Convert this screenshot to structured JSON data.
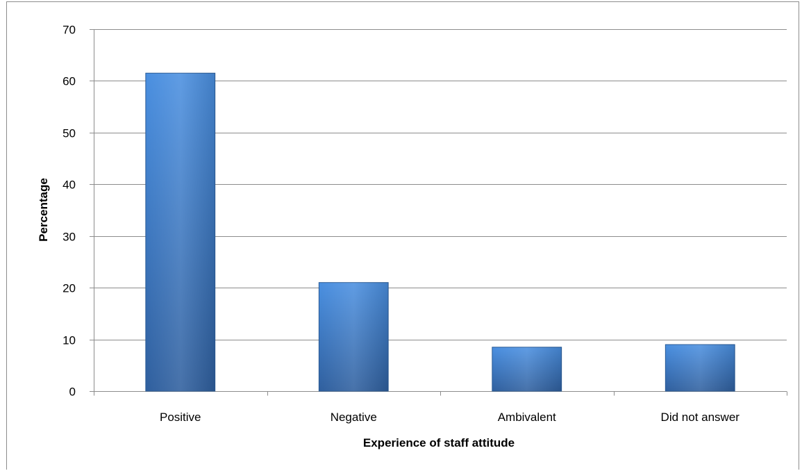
{
  "chart_data": {
    "type": "bar",
    "categories": [
      "Positive",
      "Negative",
      "Ambivalent",
      "Did not answer"
    ],
    "values": [
      61.5,
      21,
      8.5,
      9
    ],
    "title": "",
    "xlabel": "Experience of staff attitude",
    "ylabel": "Percentage",
    "ylim": [
      0,
      70
    ],
    "yticks": [
      "0",
      "10",
      "20",
      "30",
      "40",
      "50",
      "60",
      "70"
    ],
    "grid": true,
    "legend": "none",
    "colors": {
      "bar_top": "#4a8fe0",
      "bar_bottom": "#2f5f9e",
      "grid": "#8c8c8c",
      "axis": "#8c8c8c"
    }
  }
}
